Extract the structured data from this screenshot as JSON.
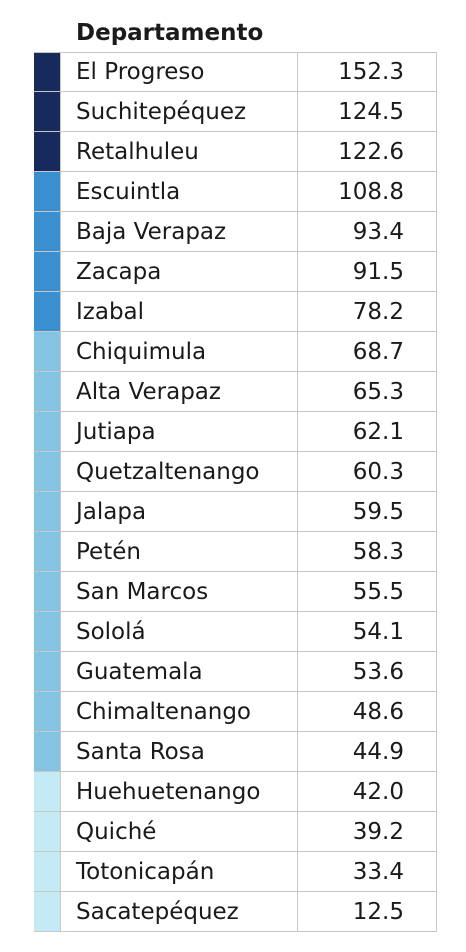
{
  "chart_data": {
    "type": "table",
    "columns": [
      "Departamento",
      ""
    ],
    "header": "Departamento",
    "color_scale": [
      "#162b5c",
      "#3a8fd0",
      "#85c3e3",
      "#c3eaf5"
    ],
    "rows": [
      {
        "name": "El Progreso",
        "value": "152.3",
        "color": "#162b5c"
      },
      {
        "name": "Suchitepéquez",
        "value": "124.5",
        "color": "#162b5c"
      },
      {
        "name": "Retalhuleu",
        "value": "122.6",
        "color": "#162b5c"
      },
      {
        "name": "Escuintla",
        "value": "108.8",
        "color": "#3a8fd0"
      },
      {
        "name": "Baja Verapaz",
        "value": "93.4",
        "color": "#3a8fd0"
      },
      {
        "name": "Zacapa",
        "value": "91.5",
        "color": "#3a8fd0"
      },
      {
        "name": "Izabal",
        "value": "78.2",
        "color": "#3a8fd0"
      },
      {
        "name": "Chiquimula",
        "value": "68.7",
        "color": "#85c3e3"
      },
      {
        "name": "Alta Verapaz",
        "value": "65.3",
        "color": "#85c3e3"
      },
      {
        "name": "Jutiapa",
        "value": "62.1",
        "color": "#85c3e3"
      },
      {
        "name": "Quetzaltenango",
        "value": "60.3",
        "color": "#85c3e3"
      },
      {
        "name": "Jalapa",
        "value": "59.5",
        "color": "#85c3e3"
      },
      {
        "name": "Petén",
        "value": "58.3",
        "color": "#85c3e3"
      },
      {
        "name": "San Marcos",
        "value": "55.5",
        "color": "#85c3e3"
      },
      {
        "name": "Sololá",
        "value": "54.1",
        "color": "#85c3e3"
      },
      {
        "name": "Guatemala",
        "value": "53.6",
        "color": "#85c3e3"
      },
      {
        "name": "Chimaltenango",
        "value": "48.6",
        "color": "#85c3e3"
      },
      {
        "name": "Santa Rosa",
        "value": "44.9",
        "color": "#85c3e3"
      },
      {
        "name": "Huehuetenango",
        "value": "42.0",
        "color": "#c3eaf5"
      },
      {
        "name": "Quiché",
        "value": "39.2",
        "color": "#c3eaf5"
      },
      {
        "name": "Totonicapán",
        "value": "33.4",
        "color": "#c3eaf5"
      },
      {
        "name": "Sacatepéquez",
        "value": "12.5",
        "color": "#c3eaf5"
      }
    ]
  }
}
